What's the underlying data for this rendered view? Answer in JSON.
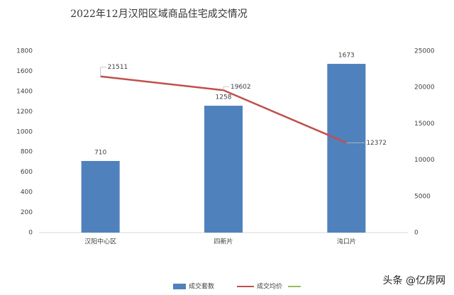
{
  "chart_data": {
    "type": "bar_line",
    "title": "2022年12月汉阳区域商品住宅成交情况",
    "categories": [
      "汉阳中心区",
      "四新片",
      "沌口片"
    ],
    "series": [
      {
        "name": "成交套数",
        "color": "#4f81bd",
        "type": "bar",
        "values": [
          710,
          1258,
          1673
        ]
      },
      {
        "name": "成交均价",
        "color": "#c0504d",
        "type": "line",
        "axis": "y2",
        "values": [
          21511,
          19602,
          12372
        ]
      }
    ],
    "ylim": [
      0,
      1800
    ],
    "yticks": [
      0,
      200,
      400,
      600,
      800,
      1000,
      1200,
      1400,
      1600,
      1800
    ],
    "y2lim": [
      0,
      25000
    ],
    "y2ticks": [
      0,
      5000,
      10000,
      15000,
      20000,
      25000
    ],
    "grid": false,
    "legend": "bottom",
    "watermark": "头条 @亿房网"
  }
}
